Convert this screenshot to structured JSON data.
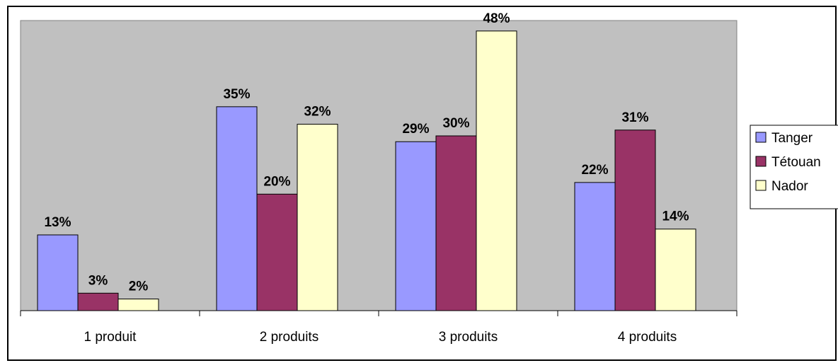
{
  "chart_data": {
    "type": "bar",
    "categories": [
      "1 produit",
      "2 produits",
      "3 produits",
      "4 produits"
    ],
    "series": [
      {
        "name": "Tanger",
        "values": [
          13,
          35,
          29,
          22
        ],
        "color": "#9999ff"
      },
      {
        "name": "Tétouan",
        "values": [
          3,
          20,
          30,
          31
        ],
        "color": "#993366"
      },
      {
        "name": "Nador",
        "values": [
          2,
          32,
          48,
          14
        ],
        "color": "#ffffcc"
      }
    ],
    "data_labels": [
      [
        "13%",
        "35%",
        "29%",
        "22%"
      ],
      [
        "3%",
        "20%",
        "30%",
        "31%"
      ],
      [
        "2%",
        "32%",
        "48%",
        "14%"
      ]
    ],
    "ylim": [
      0,
      48
    ],
    "plot_background": "#c0c0c0",
    "legend_position": "right",
    "grid": false
  }
}
